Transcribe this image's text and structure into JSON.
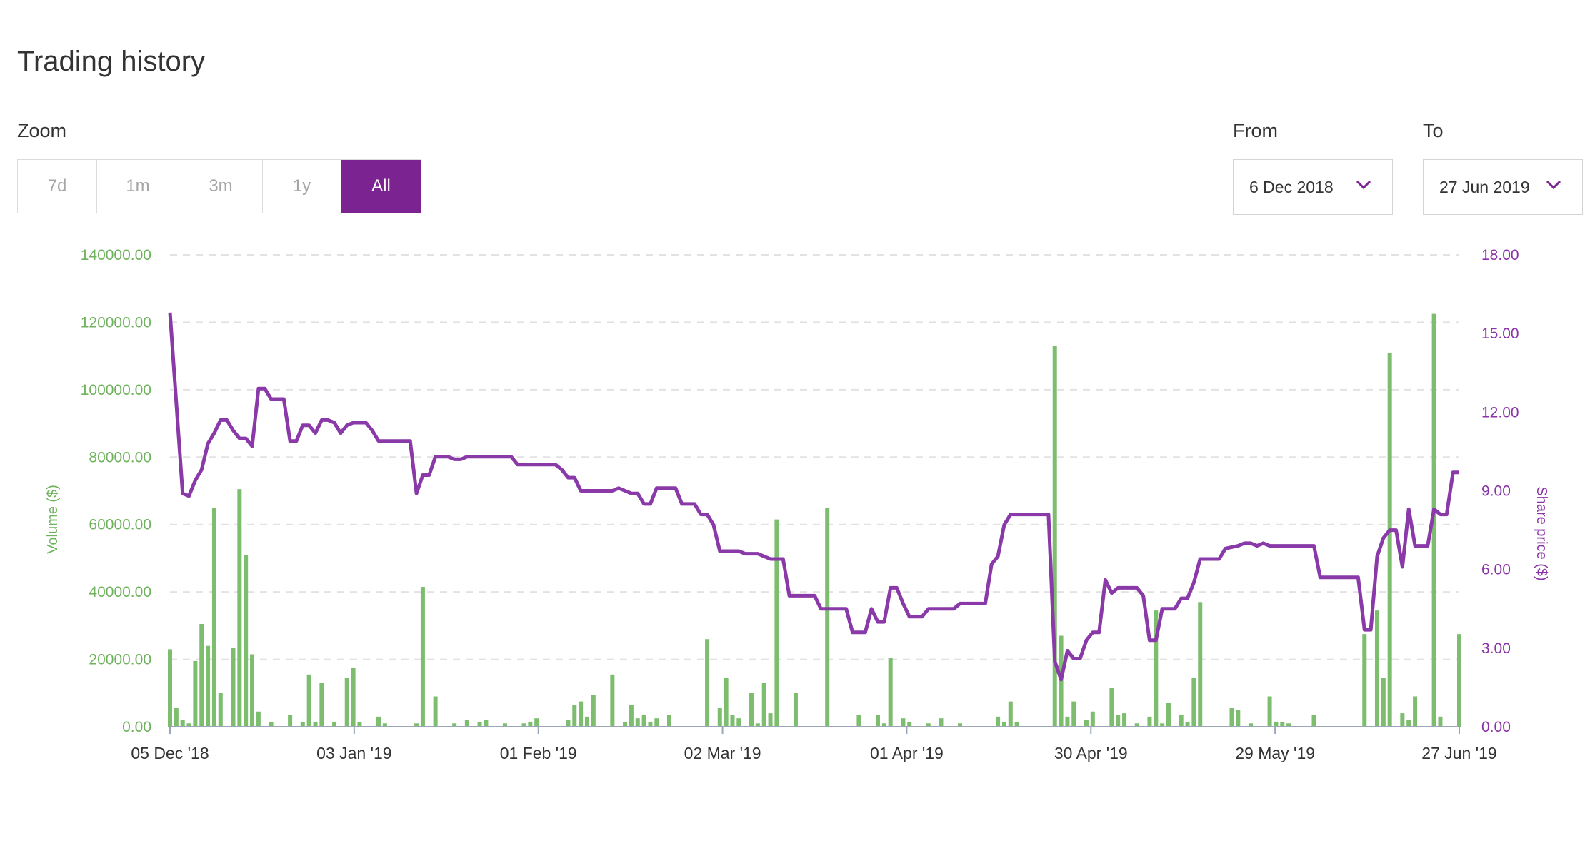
{
  "header": {
    "title": "Trading history"
  },
  "zoom": {
    "label": "Zoom",
    "options": [
      "7d",
      "1m",
      "3m",
      "1y",
      "All"
    ],
    "selected": "All"
  },
  "range": {
    "from_label": "From",
    "from_value": "6 Dec 2018",
    "to_label": "To",
    "to_value": "27 Jun 2019"
  },
  "colors": {
    "accent": "#7b2391",
    "volume": "#7dbd6e",
    "price": "#8a3aa8"
  },
  "icons": {
    "dropdown": "chevron-down-icon"
  },
  "chart_data": {
    "type": "bar",
    "xlabels": [
      "05 Dec '18",
      "03 Jan '19",
      "01 Feb '19",
      "02 Mar '19",
      "01 Apr '19",
      "30 Apr '19",
      "29 May '19",
      "27 Jun '19"
    ],
    "x_range": [
      "2018-12-05",
      "2019-06-27"
    ],
    "y_left": {
      "label": "Volume ($)",
      "ticks": [
        "0.00",
        "20000.00",
        "40000.00",
        "60000.00",
        "80000.00",
        "100000.00",
        "120000.00",
        "140000.00"
      ],
      "ylim": [
        0,
        140000
      ]
    },
    "y_right": {
      "label": "Share price ($)",
      "ticks": [
        "0.00",
        "3.00",
        "6.00",
        "9.00",
        "12.00",
        "15.00",
        "18.00"
      ],
      "ylim": [
        0,
        18
      ]
    },
    "grid": true,
    "series": [
      {
        "type": "bar",
        "axis": "left",
        "points": [
          [
            "2018-12-05",
            23000
          ],
          [
            "2018-12-06",
            5500
          ],
          [
            "2018-12-07",
            2000
          ],
          [
            "2018-12-08",
            1000
          ],
          [
            "2018-12-09",
            19500
          ],
          [
            "2018-12-10",
            30500
          ],
          [
            "2018-12-11",
            24000
          ],
          [
            "2018-12-12",
            65000
          ],
          [
            "2018-12-13",
            10000
          ],
          [
            "2018-12-15",
            23500
          ],
          [
            "2018-12-16",
            70500
          ],
          [
            "2018-12-17",
            51000
          ],
          [
            "2018-12-18",
            21500
          ],
          [
            "2018-12-19",
            4500
          ],
          [
            "2018-12-21",
            1500
          ],
          [
            "2018-12-24",
            3500
          ],
          [
            "2018-12-26",
            1500
          ],
          [
            "2018-12-27",
            15500
          ],
          [
            "2018-12-28",
            1500
          ],
          [
            "2018-12-29",
            13000
          ],
          [
            "2018-12-31",
            1500
          ],
          [
            "2019-01-02",
            14500
          ],
          [
            "2019-01-03",
            17500
          ],
          [
            "2019-01-04",
            1500
          ],
          [
            "2019-01-07",
            3000
          ],
          [
            "2019-01-08",
            1000
          ],
          [
            "2019-01-13",
            1000
          ],
          [
            "2019-01-14",
            41500
          ],
          [
            "2019-01-16",
            9000
          ],
          [
            "2019-01-19",
            1000
          ],
          [
            "2019-01-21",
            2000
          ],
          [
            "2019-01-23",
            1500
          ],
          [
            "2019-01-24",
            2000
          ],
          [
            "2019-01-27",
            1000
          ],
          [
            "2019-01-30",
            1000
          ],
          [
            "2019-01-31",
            1500
          ],
          [
            "2019-02-01",
            2500
          ],
          [
            "2019-02-06",
            2000
          ],
          [
            "2019-02-07",
            6500
          ],
          [
            "2019-02-08",
            7500
          ],
          [
            "2019-02-09",
            3000
          ],
          [
            "2019-02-10",
            9500
          ],
          [
            "2019-02-13",
            15500
          ],
          [
            "2019-02-15",
            1500
          ],
          [
            "2019-02-16",
            6500
          ],
          [
            "2019-02-17",
            2500
          ],
          [
            "2019-02-18",
            3500
          ],
          [
            "2019-02-19",
            1500
          ],
          [
            "2019-02-20",
            2500
          ],
          [
            "2019-02-22",
            3500
          ],
          [
            "2019-02-28",
            26000
          ],
          [
            "2019-03-02",
            5500
          ],
          [
            "2019-03-03",
            14500
          ],
          [
            "2019-03-04",
            3500
          ],
          [
            "2019-03-05",
            2500
          ],
          [
            "2019-03-07",
            10000
          ],
          [
            "2019-03-08",
            1000
          ],
          [
            "2019-03-09",
            13000
          ],
          [
            "2019-03-10",
            4000
          ],
          [
            "2019-03-11",
            61500
          ],
          [
            "2019-03-14",
            10000
          ],
          [
            "2019-03-19",
            65000
          ],
          [
            "2019-03-24",
            3500
          ],
          [
            "2019-03-27",
            3500
          ],
          [
            "2019-03-28",
            1000
          ],
          [
            "2019-03-29",
            20500
          ],
          [
            "2019-03-31",
            2500
          ],
          [
            "2019-04-01",
            1500
          ],
          [
            "2019-04-04",
            1000
          ],
          [
            "2019-04-06",
            2500
          ],
          [
            "2019-04-09",
            1000
          ],
          [
            "2019-04-15",
            3000
          ],
          [
            "2019-04-16",
            1500
          ],
          [
            "2019-04-17",
            7500
          ],
          [
            "2019-04-18",
            1500
          ],
          [
            "2019-04-24",
            113000
          ],
          [
            "2019-04-25",
            27000
          ],
          [
            "2019-04-26",
            3000
          ],
          [
            "2019-04-27",
            7500
          ],
          [
            "2019-04-29",
            2000
          ],
          [
            "2019-04-30",
            4500
          ],
          [
            "2019-05-03",
            11500
          ],
          [
            "2019-05-04",
            3500
          ],
          [
            "2019-05-05",
            4000
          ],
          [
            "2019-05-07",
            1000
          ],
          [
            "2019-05-09",
            3000
          ],
          [
            "2019-05-10",
            34500
          ],
          [
            "2019-05-11",
            1000
          ],
          [
            "2019-05-12",
            7000
          ],
          [
            "2019-05-14",
            3500
          ],
          [
            "2019-05-15",
            1500
          ],
          [
            "2019-05-16",
            14500
          ],
          [
            "2019-05-17",
            37000
          ],
          [
            "2019-05-22",
            5500
          ],
          [
            "2019-05-23",
            5000
          ],
          [
            "2019-05-25",
            1000
          ],
          [
            "2019-05-28",
            9000
          ],
          [
            "2019-05-29",
            1500
          ],
          [
            "2019-05-30",
            1500
          ],
          [
            "2019-05-31",
            1000
          ],
          [
            "2019-06-04",
            3500
          ],
          [
            "2019-06-12",
            27500
          ],
          [
            "2019-06-14",
            34500
          ],
          [
            "2019-06-15",
            14500
          ],
          [
            "2019-06-16",
            111000
          ],
          [
            "2019-06-18",
            4000
          ],
          [
            "2019-06-19",
            2000
          ],
          [
            "2019-06-20",
            9000
          ],
          [
            "2019-06-23",
            122500
          ],
          [
            "2019-06-24",
            3000
          ],
          [
            "2019-06-27",
            27500
          ]
        ]
      },
      {
        "type": "line",
        "axis": "right",
        "points": [
          [
            "2018-12-05",
            15.8
          ],
          [
            "2018-12-07",
            8.9
          ],
          [
            "2018-12-08",
            8.8
          ],
          [
            "2018-12-09",
            9.4
          ],
          [
            "2018-12-10",
            9.8
          ],
          [
            "2018-12-11",
            10.8
          ],
          [
            "2018-12-12",
            11.2
          ],
          [
            "2018-12-13",
            11.7
          ],
          [
            "2018-12-14",
            11.7
          ],
          [
            "2018-12-15",
            11.3
          ],
          [
            "2018-12-16",
            11.0
          ],
          [
            "2018-12-17",
            11.0
          ],
          [
            "2018-12-18",
            10.7
          ],
          [
            "2018-12-19",
            12.9
          ],
          [
            "2018-12-20",
            12.9
          ],
          [
            "2018-12-21",
            12.5
          ],
          [
            "2018-12-22",
            12.5
          ],
          [
            "2018-12-23",
            12.5
          ],
          [
            "2018-12-24",
            10.9
          ],
          [
            "2018-12-25",
            10.9
          ],
          [
            "2018-12-26",
            11.5
          ],
          [
            "2018-12-27",
            11.5
          ],
          [
            "2018-12-28",
            11.2
          ],
          [
            "2018-12-29",
            11.7
          ],
          [
            "2018-12-30",
            11.7
          ],
          [
            "2018-12-31",
            11.6
          ],
          [
            "2019-01-01",
            11.2
          ],
          [
            "2019-01-02",
            11.5
          ],
          [
            "2019-01-03",
            11.6
          ],
          [
            "2019-01-04",
            11.6
          ],
          [
            "2019-01-05",
            11.6
          ],
          [
            "2019-01-06",
            11.3
          ],
          [
            "2019-01-07",
            10.9
          ],
          [
            "2019-01-08",
            10.9
          ],
          [
            "2019-01-12",
            10.9
          ],
          [
            "2019-01-13",
            8.9
          ],
          [
            "2019-01-14",
            9.6
          ],
          [
            "2019-01-15",
            9.6
          ],
          [
            "2019-01-16",
            10.3
          ],
          [
            "2019-01-17",
            10.3
          ],
          [
            "2019-01-18",
            10.3
          ],
          [
            "2019-01-19",
            10.2
          ],
          [
            "2019-01-20",
            10.2
          ],
          [
            "2019-01-21",
            10.3
          ],
          [
            "2019-01-24",
            10.3
          ],
          [
            "2019-01-25",
            10.3
          ],
          [
            "2019-01-28",
            10.3
          ],
          [
            "2019-01-29",
            10.0
          ],
          [
            "2019-02-04",
            10.0
          ],
          [
            "2019-02-05",
            9.8
          ],
          [
            "2019-02-06",
            9.5
          ],
          [
            "2019-02-07",
            9.5
          ],
          [
            "2019-02-08",
            9.0
          ],
          [
            "2019-02-13",
            9.0
          ],
          [
            "2019-02-14",
            9.1
          ],
          [
            "2019-02-15",
            9.0
          ],
          [
            "2019-02-16",
            8.9
          ],
          [
            "2019-02-17",
            8.9
          ],
          [
            "2019-02-18",
            8.5
          ],
          [
            "2019-02-19",
            8.5
          ],
          [
            "2019-02-20",
            9.1
          ],
          [
            "2019-02-23",
            9.1
          ],
          [
            "2019-02-24",
            8.5
          ],
          [
            "2019-02-26",
            8.5
          ],
          [
            "2019-02-27",
            8.1
          ],
          [
            "2019-02-28",
            8.1
          ],
          [
            "2019-03-01",
            7.7
          ],
          [
            "2019-03-02",
            6.7
          ],
          [
            "2019-03-05",
            6.7
          ],
          [
            "2019-03-06",
            6.6
          ],
          [
            "2019-03-08",
            6.6
          ],
          [
            "2019-03-09",
            6.5
          ],
          [
            "2019-03-10",
            6.4
          ],
          [
            "2019-03-12",
            6.4
          ],
          [
            "2019-03-13",
            5.0
          ],
          [
            "2019-03-17",
            5.0
          ],
          [
            "2019-03-18",
            4.5
          ],
          [
            "2019-03-22",
            4.5
          ],
          [
            "2019-03-23",
            3.6
          ],
          [
            "2019-03-25",
            3.6
          ],
          [
            "2019-03-26",
            4.5
          ],
          [
            "2019-03-27",
            4.0
          ],
          [
            "2019-03-28",
            4.0
          ],
          [
            "2019-03-29",
            5.3
          ],
          [
            "2019-03-30",
            5.3
          ],
          [
            "2019-03-31",
            4.7
          ],
          [
            "2019-04-01",
            4.2
          ],
          [
            "2019-04-03",
            4.2
          ],
          [
            "2019-04-04",
            4.5
          ],
          [
            "2019-04-08",
            4.5
          ],
          [
            "2019-04-09",
            4.7
          ],
          [
            "2019-04-13",
            4.7
          ],
          [
            "2019-04-14",
            6.2
          ],
          [
            "2019-04-15",
            6.5
          ],
          [
            "2019-04-16",
            7.7
          ],
          [
            "2019-04-17",
            8.1
          ],
          [
            "2019-04-23",
            8.1
          ],
          [
            "2019-04-24",
            2.5
          ],
          [
            "2019-04-25",
            1.8
          ],
          [
            "2019-04-26",
            2.9
          ],
          [
            "2019-04-27",
            2.6
          ],
          [
            "2019-04-28",
            2.6
          ],
          [
            "2019-04-29",
            3.3
          ],
          [
            "2019-04-30",
            3.6
          ],
          [
            "2019-05-01",
            3.6
          ],
          [
            "2019-05-02",
            5.6
          ],
          [
            "2019-05-03",
            5.1
          ],
          [
            "2019-05-04",
            5.3
          ],
          [
            "2019-05-07",
            5.3
          ],
          [
            "2019-05-08",
            5.0
          ],
          [
            "2019-05-09",
            3.3
          ],
          [
            "2019-05-10",
            3.3
          ],
          [
            "2019-05-11",
            4.5
          ],
          [
            "2019-05-12",
            4.5
          ],
          [
            "2019-05-13",
            4.5
          ],
          [
            "2019-05-14",
            4.9
          ],
          [
            "2019-05-15",
            4.9
          ],
          [
            "2019-05-16",
            5.5
          ],
          [
            "2019-05-17",
            6.4
          ],
          [
            "2019-05-20",
            6.4
          ],
          [
            "2019-05-21",
            6.8
          ],
          [
            "2019-05-23",
            6.9
          ],
          [
            "2019-05-24",
            7.0
          ],
          [
            "2019-05-25",
            7.0
          ],
          [
            "2019-05-26",
            6.9
          ],
          [
            "2019-05-27",
            7.0
          ],
          [
            "2019-05-28",
            6.9
          ],
          [
            "2019-05-29",
            6.9
          ],
          [
            "2019-06-04",
            6.9
          ],
          [
            "2019-06-05",
            5.7
          ],
          [
            "2019-06-11",
            5.7
          ],
          [
            "2019-06-12",
            3.7
          ],
          [
            "2019-06-13",
            3.7
          ],
          [
            "2019-06-14",
            6.5
          ],
          [
            "2019-06-15",
            7.2
          ],
          [
            "2019-06-16",
            7.5
          ],
          [
            "2019-06-17",
            7.5
          ],
          [
            "2019-06-18",
            6.1
          ],
          [
            "2019-06-19",
            8.3
          ],
          [
            "2019-06-20",
            6.9
          ],
          [
            "2019-06-22",
            6.9
          ],
          [
            "2019-06-23",
            8.3
          ],
          [
            "2019-06-24",
            8.1
          ],
          [
            "2019-06-25",
            8.1
          ],
          [
            "2019-06-26",
            9.7
          ],
          [
            "2019-06-27",
            9.7
          ]
        ]
      }
    ]
  }
}
